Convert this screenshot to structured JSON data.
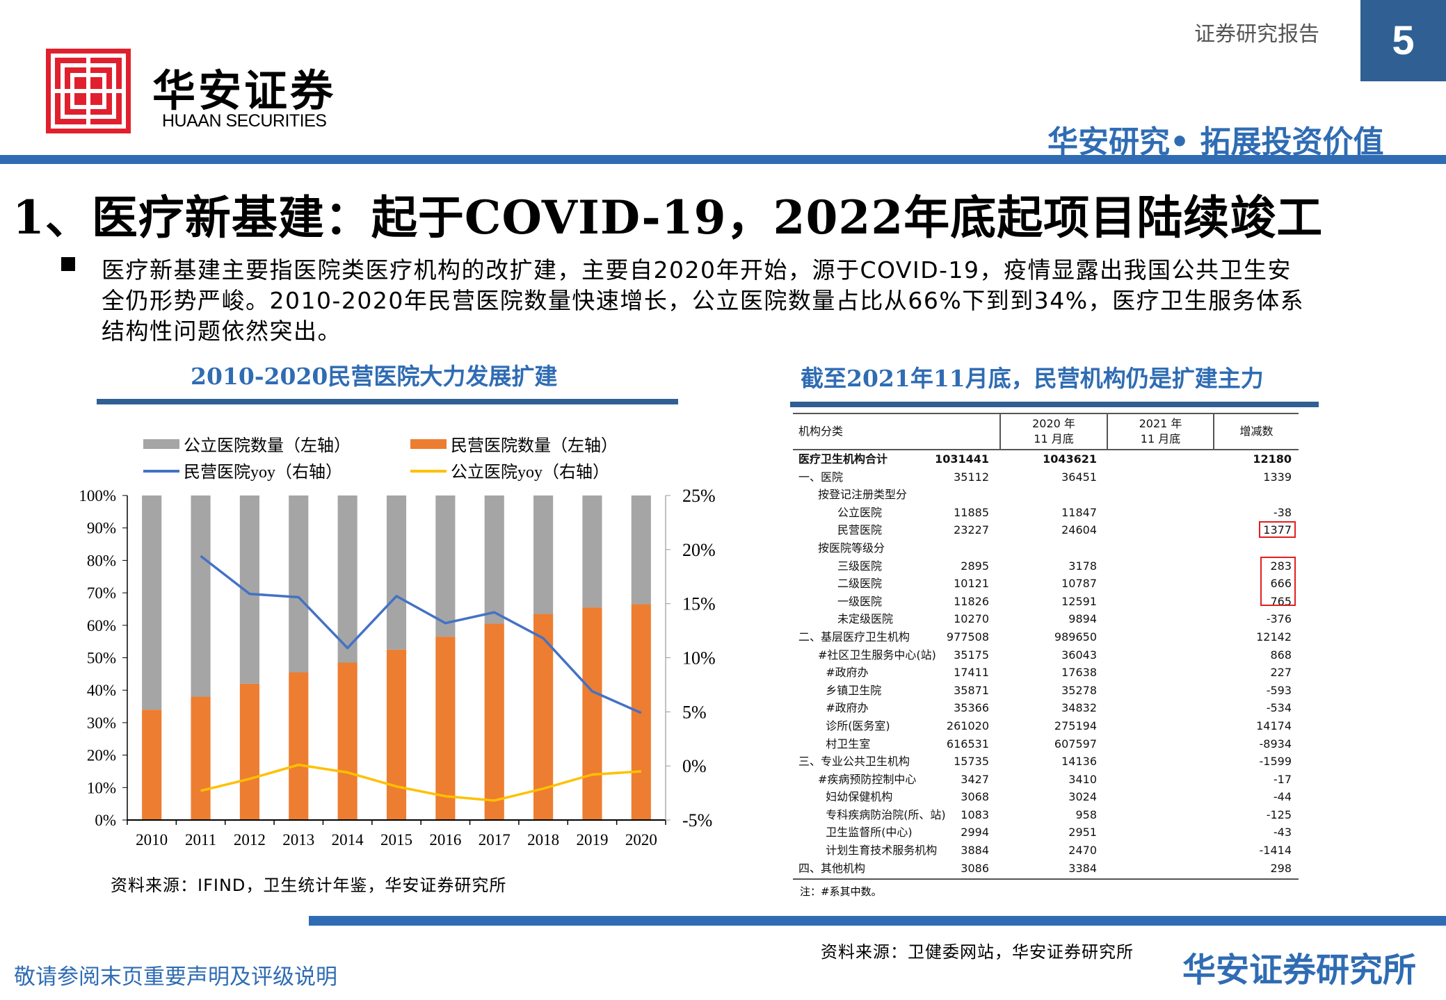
{
  "header": {
    "brand_cn": "华安证券",
    "brand_en": "HUAAN SECURITIES",
    "report_type": "证券研究报告",
    "page_number": "5",
    "slogan": "华安研究• 拓展投资价值",
    "brand_color": "#2f6cb3",
    "logo_color": "#e0202e"
  },
  "title": "1、医疗新基建：起于COVID-19，2022年底起项目陆续竣工",
  "bullet_lines": [
    "医疗新基建主要指医院类医疗机构的改扩建，主要自2020年开始，源于COVID-19，疫情显露出我国公共卫生安",
    "全仍形势严峻。2010-2020年民营医院数量快速增长，公立医院数量占比从66%下到到34%，医疗卫生服务体系",
    "结构性问题依然突出。"
  ],
  "left": {
    "title": "2010-2020民营医院大力发展扩建",
    "source": "资料来源：IFIND，卫生统计年鉴，华安证券研究所"
  },
  "chart_data": {
    "type": "bar",
    "stacked": true,
    "categories": [
      "2010",
      "2011",
      "2012",
      "2013",
      "2014",
      "2015",
      "2016",
      "2017",
      "2018",
      "2019",
      "2020"
    ],
    "series": [
      {
        "name": "公立医院数量（左轴）",
        "type": "bar",
        "axis": "left",
        "color": "#a5a5a5",
        "values": [
          66,
          62,
          58,
          54.5,
          51.5,
          47.5,
          43.5,
          39.5,
          36.5,
          34.5,
          33.5
        ]
      },
      {
        "name": "民营医院数量（左轴）",
        "type": "bar",
        "axis": "left",
        "color": "#ed7d31",
        "values": [
          34,
          38,
          42,
          45.5,
          48.5,
          52.5,
          56.5,
          60.5,
          63.5,
          65.5,
          66.5
        ]
      },
      {
        "name": "民营医院yoy（右轴）",
        "type": "line",
        "axis": "right",
        "color": "#4472c4",
        "values": [
          null,
          19.4,
          15.9,
          15.6,
          10.9,
          15.7,
          13.2,
          14.2,
          11.8,
          6.9,
          4.9
        ]
      },
      {
        "name": "公立医院yoy（右轴）",
        "type": "line",
        "axis": "right",
        "color": "#ffc000",
        "values": [
          null,
          -2.3,
          -1.2,
          0.1,
          -0.6,
          -1.9,
          -2.8,
          -3.2,
          -2.1,
          -0.8,
          -0.5
        ]
      }
    ],
    "y_left": {
      "range": [
        0,
        100
      ],
      "ticks": [
        "0%",
        "10%",
        "20%",
        "30%",
        "40%",
        "50%",
        "60%",
        "70%",
        "80%",
        "90%",
        "100%"
      ]
    },
    "y_right": {
      "range": [
        -5,
        25
      ],
      "ticks": [
        "-5%",
        "0%",
        "5%",
        "10%",
        "15%",
        "20%",
        "25%"
      ]
    },
    "grid": false,
    "legend": "top"
  },
  "right": {
    "title": "截至2021年11月底，民营机构仍是扩建主力",
    "headers": [
      "机构分类",
      "2020 年\n11 月底",
      "2021 年\n11 月底",
      "增减数"
    ],
    "rows": [
      {
        "label": "医疗卫生机构合计",
        "indent": 0,
        "bold": true,
        "v": [
          "1031441",
          "1043621",
          "12180"
        ]
      },
      {
        "label": "一、医院",
        "indent": 0,
        "v": [
          "35112",
          "36451",
          "1339"
        ]
      },
      {
        "label": "按登记注册类型分",
        "indent": 1,
        "v": [
          "",
          "",
          ""
        ]
      },
      {
        "label": "公立医院",
        "indent": 2,
        "v": [
          "11885",
          "11847",
          "-38"
        ]
      },
      {
        "label": "民营医院",
        "indent": 2,
        "v": [
          "23227",
          "24604",
          "1377"
        ]
      },
      {
        "label": "按医院等级分",
        "indent": 1,
        "v": [
          "",
          "",
          ""
        ]
      },
      {
        "label": "三级医院",
        "indent": 2,
        "v": [
          "2895",
          "3178",
          "283"
        ]
      },
      {
        "label": "二级医院",
        "indent": 2,
        "v": [
          "10121",
          "10787",
          "666"
        ]
      },
      {
        "label": "一级医院",
        "indent": 2,
        "v": [
          "11826",
          "12591",
          "765"
        ]
      },
      {
        "label": "未定级医院",
        "indent": 2,
        "v": [
          "10270",
          "9894",
          "-376"
        ]
      },
      {
        "label": "二、基层医疗卫生机构",
        "indent": 0,
        "v": [
          "977508",
          "989650",
          "12142"
        ]
      },
      {
        "label": "#社区卫生服务中心(站)",
        "indent": 1,
        "v": [
          "35175",
          "36043",
          "868"
        ]
      },
      {
        "label": "#政府办",
        "indent": 1.4,
        "v": [
          "17411",
          "17638",
          "227"
        ]
      },
      {
        "label": "乡镇卫生院",
        "indent": 1.4,
        "v": [
          "35871",
          "35278",
          "-593"
        ]
      },
      {
        "label": "#政府办",
        "indent": 1.4,
        "v": [
          "35366",
          "34832",
          "-534"
        ]
      },
      {
        "label": "诊所(医务室)",
        "indent": 1.4,
        "v": [
          "261020",
          "275194",
          "14174"
        ]
      },
      {
        "label": "村卫生室",
        "indent": 1.4,
        "v": [
          "616531",
          "607597",
          "-8934"
        ]
      },
      {
        "label": "三、专业公共卫生机构",
        "indent": 0,
        "v": [
          "15735",
          "14136",
          "-1599"
        ]
      },
      {
        "label": "#疾病预防控制中心",
        "indent": 1,
        "v": [
          "3427",
          "3410",
          "-17"
        ]
      },
      {
        "label": "妇幼保健机构",
        "indent": 1.4,
        "v": [
          "3068",
          "3024",
          "-44"
        ]
      },
      {
        "label": "专科疾病防治院(所、站)",
        "indent": 1.4,
        "v": [
          "1083",
          "958",
          "-125"
        ]
      },
      {
        "label": "卫生监督所(中心)",
        "indent": 1.4,
        "v": [
          "2994",
          "2951",
          "-43"
        ]
      },
      {
        "label": "计划生育技术服务机构",
        "indent": 1.4,
        "v": [
          "3884",
          "2470",
          "-1414"
        ]
      },
      {
        "label": "四、其他机构",
        "indent": 0,
        "v": [
          "3086",
          "3384",
          "298"
        ]
      }
    ],
    "note": "注：#系其中数。",
    "source": "资料来源：卫健委网站，华安证券研究所"
  },
  "footer": {
    "brand": "华安证券研究所",
    "disclaimer": "敬请参阅末页重要声明及评级说明"
  }
}
